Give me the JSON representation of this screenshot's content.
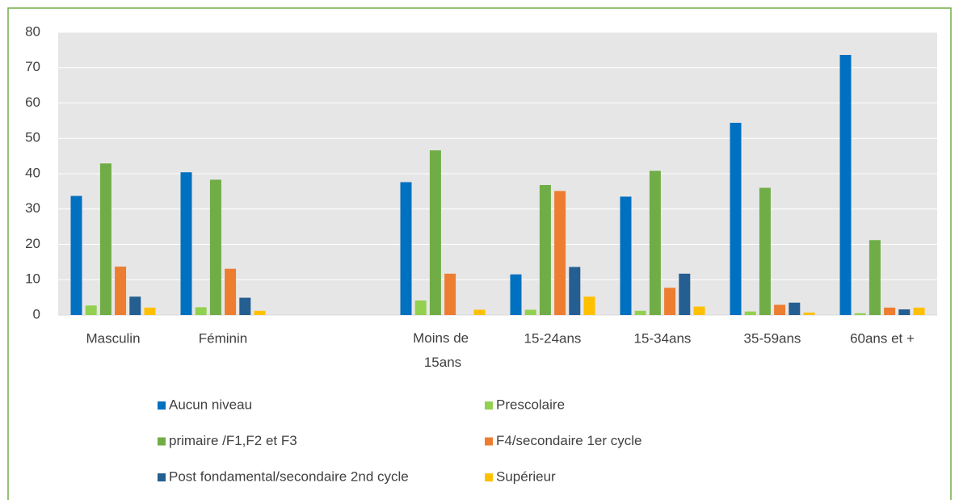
{
  "chart_data": {
    "type": "bar",
    "categories": [
      "Masculin",
      "Féminin",
      null,
      "Moins de 15ans",
      "15-24ans",
      "15-34ans",
      "35-59ans",
      "60ans et +"
    ],
    "series": [
      {
        "name": "Aucun niveau",
        "color": "#0070c0",
        "values": [
          33.7,
          40.4,
          null,
          37.6,
          11.5,
          33.5,
          54.4,
          73.6
        ]
      },
      {
        "name": "Prescolaire",
        "color": "#92d050",
        "values": [
          2.7,
          2.2,
          null,
          4.1,
          1.5,
          1.2,
          1.0,
          0.5
        ]
      },
      {
        "name": "primaire /F1,F2 et F3",
        "color": "#70ad47",
        "values": [
          42.9,
          38.3,
          null,
          46.6,
          36.8,
          40.8,
          36.0,
          21.2
        ]
      },
      {
        "name": "F4/secondaire 1er cycle",
        "color": "#ed7d31",
        "values": [
          13.7,
          13.1,
          null,
          11.7,
          35.1,
          7.7,
          2.9,
          2.1
        ]
      },
      {
        "name": "Post fondamental/secondaire 2nd cycle",
        "color": "#255e91",
        "values": [
          5.2,
          4.9,
          null,
          0,
          13.6,
          11.7,
          3.5,
          1.6
        ]
      },
      {
        "name": "Supérieur",
        "color": "#ffc000",
        "values": [
          2.1,
          1.2,
          null,
          1.5,
          5.2,
          2.4,
          0.7,
          2.1
        ]
      }
    ],
    "ylim": [
      0,
      80
    ],
    "yticks": [
      0,
      10,
      20,
      30,
      40,
      50,
      60,
      70,
      80
    ],
    "grid": true
  }
}
